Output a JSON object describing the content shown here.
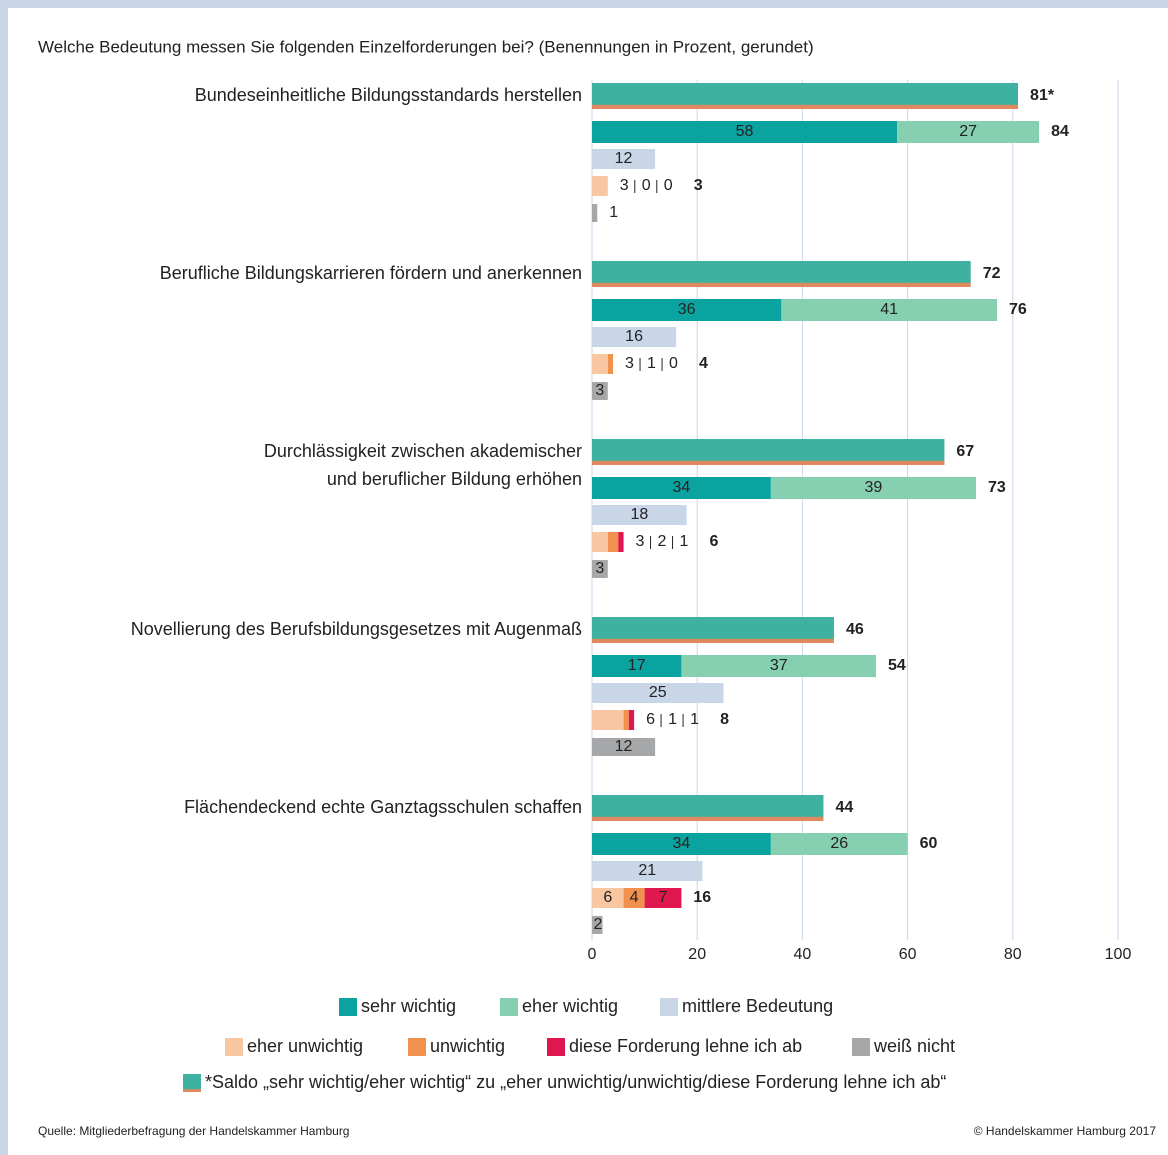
{
  "chart_data": {
    "type": "bar",
    "title": "Welche Bedeutung messen Sie folgenden Einzelforderungen bei? (Benennungen in Prozent, gerundet)",
    "categories": [
      [
        "Bundeseinheitliche Bildungsstandards herstellen"
      ],
      [
        "Berufliche Bildungskarrieren fördern und anerkennen"
      ],
      [
        "Durchlässigkeit zwischen akademischer",
        "und beruflicher Bildung erhöhen"
      ],
      [
        "Novellierung des Berufsbildungsgesetzes mit Augenmaß"
      ],
      [
        "Flächendeckend echte Ganztagsschulen schaffen"
      ]
    ],
    "series": [
      {
        "name": "*Saldo „sehr wichtig/eher wichtig“ zu „eher unwichtig/unwichtig/diese Forderung lehne ich ab“",
        "color": "#3fb1a1",
        "accent_color": "#e0895e",
        "values": [
          81,
          72,
          67,
          46,
          44
        ],
        "value_labels": [
          "81*",
          "72",
          "67",
          "46",
          "44"
        ]
      },
      {
        "name": "sehr wichtig",
        "color": "#0aa3a0",
        "values": [
          58,
          36,
          34,
          17,
          34
        ]
      },
      {
        "name": "eher wichtig",
        "color": "#86cfb0",
        "values": [
          27,
          41,
          39,
          37,
          26
        ]
      },
      {
        "name": "mittlere Bedeutung",
        "color": "#c9d6e8",
        "values": [
          12,
          16,
          18,
          25,
          21
        ]
      },
      {
        "name": "eher unwichtig",
        "color": "#f9c6a2",
        "values": [
          3,
          3,
          3,
          6,
          6
        ]
      },
      {
        "name": "unwichtig",
        "color": "#f0924e",
        "values": [
          0,
          1,
          2,
          1,
          4
        ]
      },
      {
        "name": "diese Forderung lehne ich ab",
        "color": "#e0174f",
        "values": [
          0,
          0,
          1,
          1,
          7
        ]
      },
      {
        "name": "weiß nicht",
        "color": "#a5a7a9",
        "values": [
          1,
          3,
          3,
          12,
          2
        ]
      }
    ],
    "wichtig_totals": [
      84,
      76,
      73,
      54,
      60
    ],
    "unwichtig_totals": [
      3,
      4,
      6,
      8,
      16
    ],
    "xlim": [
      0,
      100
    ],
    "xticks": [
      0,
      20,
      40,
      60,
      80,
      100
    ],
    "grid": true,
    "source": "Quelle: Mitgliederbefragung der Handelskammer Hamburg",
    "copyright": "© Handelskammer Hamburg 2017"
  }
}
